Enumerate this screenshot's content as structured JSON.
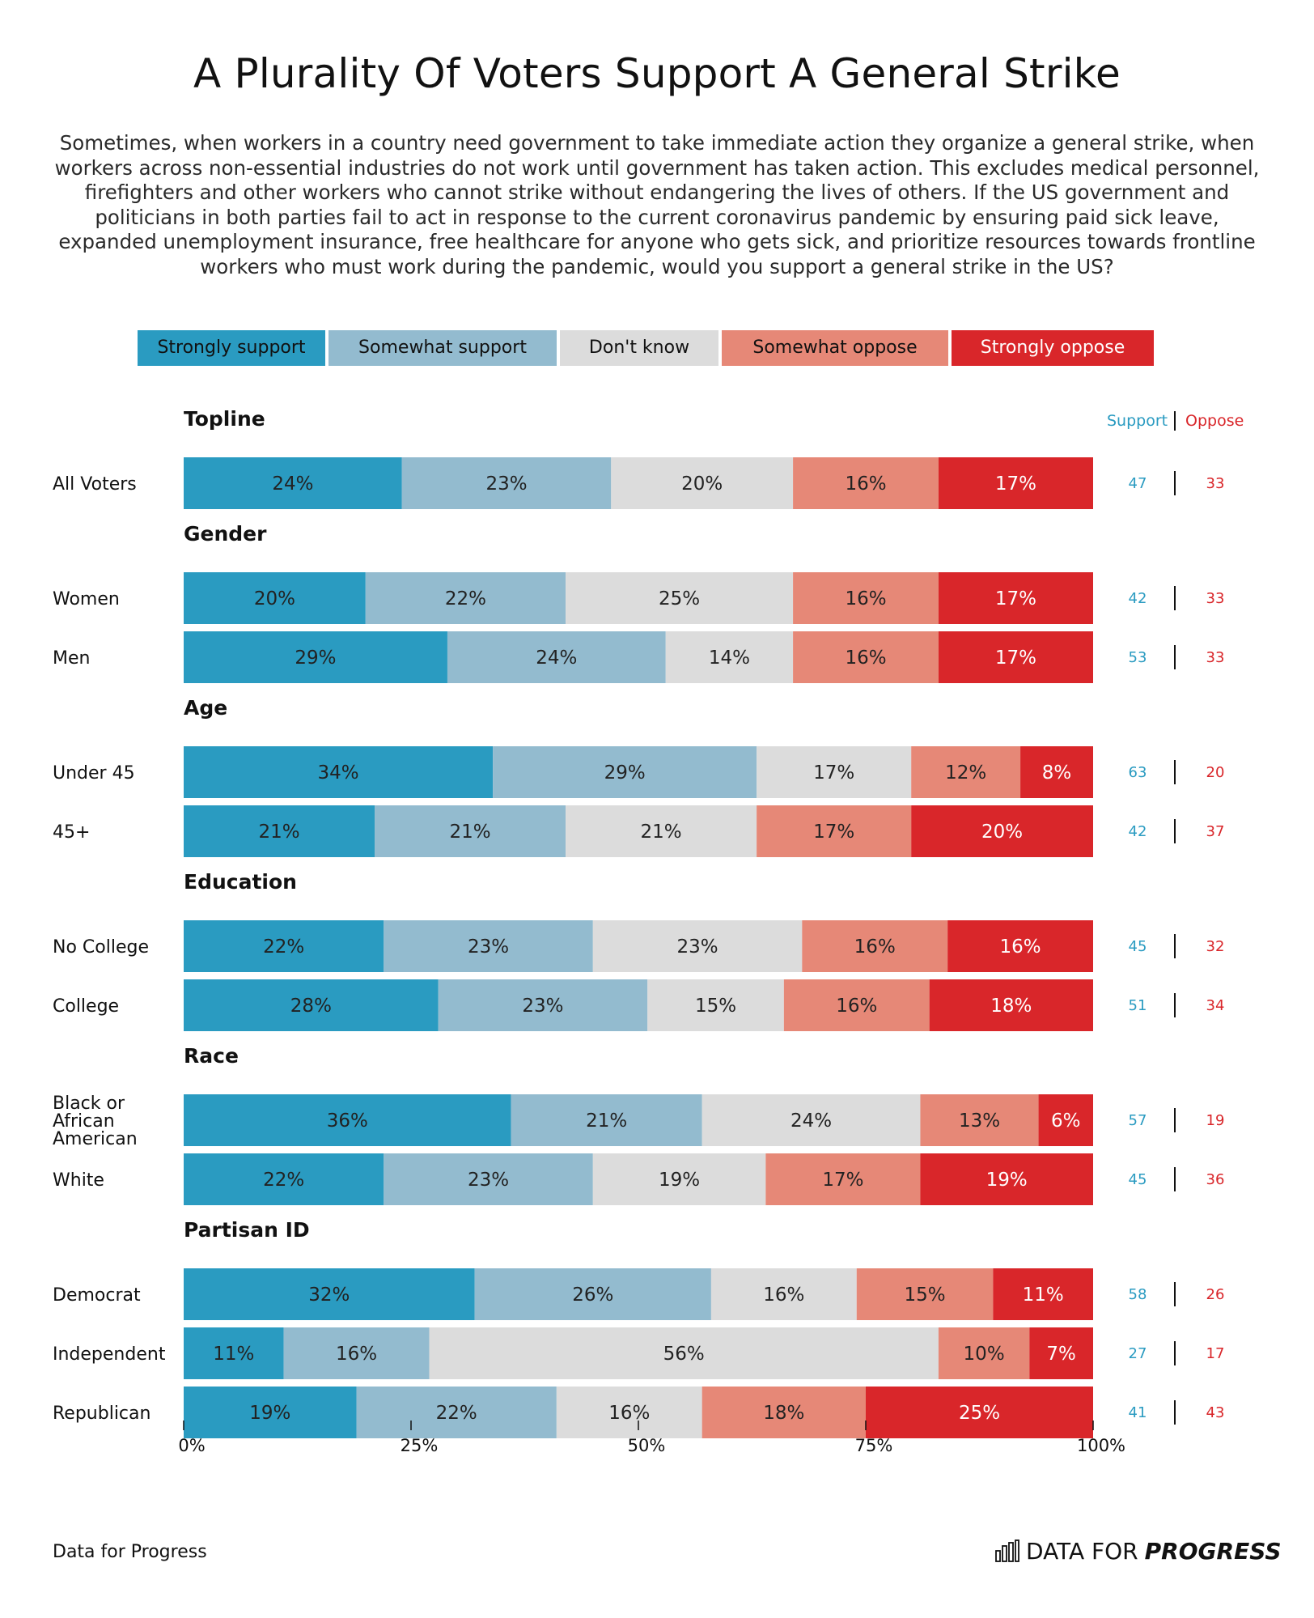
{
  "title": "A Plurality Of Voters Support A General Strike",
  "subtitle": "Sometimes, when workers in a country need government to take immediate action they organize a general strike, when workers across non-essential industries do not work until government has taken action. This excludes medical personnel, firefighters and other workers who cannot strike without endangering the lives of others. If the US government and politicians in both parties fail to act in response to the current coronavirus pandemic by ensuring paid sick leave, expanded unemployment insurance, free healthcare for anyone who gets sick, and prioritize resources towards frontline workers who must work during the pandemic, would you support a general strike in the US?",
  "colors": {
    "strongly_support": "#2a9bc1",
    "somewhat_support": "#93bbcf",
    "dont_know": "#dcdcdc",
    "somewhat_oppose": "#e68877",
    "strongly_oppose": "#d9262a",
    "support_text": "#2a9bc1",
    "oppose_text": "#d9262a"
  },
  "legend": [
    {
      "label": "Strongly support",
      "key": "strongly_support",
      "text_color": "#111111"
    },
    {
      "label": "Somewhat support",
      "key": "somewhat_support",
      "text_color": "#111111"
    },
    {
      "label": "Don't know",
      "key": "dont_know",
      "text_color": "#111111"
    },
    {
      "label": "Somewhat oppose",
      "key": "somewhat_oppose",
      "text_color": "#111111"
    },
    {
      "label": "Strongly oppose",
      "key": "strongly_oppose",
      "text_color": "#ffffff"
    }
  ],
  "support_header": "Support",
  "oppose_header": "Oppose",
  "chart_data": {
    "type": "bar",
    "orientation": "horizontal",
    "stacked": true,
    "xlim": [
      0,
      100
    ],
    "x_ticks": [
      "0%",
      "25%",
      "50%",
      "75%",
      "100%"
    ],
    "x_tick_values": [
      0,
      25,
      50,
      75,
      100
    ],
    "series_names": [
      "Strongly support",
      "Somewhat support",
      "Don't know",
      "Somewhat oppose",
      "Strongly oppose"
    ],
    "groups": [
      {
        "name": "Topline",
        "rows": [
          {
            "label": "All Voters",
            "values": [
              24,
              23,
              20,
              16,
              17
            ],
            "support": 47,
            "oppose": 33
          }
        ]
      },
      {
        "name": "Gender",
        "rows": [
          {
            "label": "Women",
            "values": [
              20,
              22,
              25,
              16,
              17
            ],
            "support": 42,
            "oppose": 33
          },
          {
            "label": "Men",
            "values": [
              29,
              24,
              14,
              16,
              17
            ],
            "support": 53,
            "oppose": 33
          }
        ]
      },
      {
        "name": "Age",
        "rows": [
          {
            "label": "Under 45",
            "values": [
              34,
              29,
              17,
              12,
              8
            ],
            "support": 63,
            "oppose": 20
          },
          {
            "label": "45+",
            "values": [
              21,
              21,
              21,
              17,
              20
            ],
            "support": 42,
            "oppose": 37
          }
        ]
      },
      {
        "name": "Education",
        "rows": [
          {
            "label": "No College",
            "values": [
              22,
              23,
              23,
              16,
              16
            ],
            "support": 45,
            "oppose": 32
          },
          {
            "label": "College",
            "values": [
              28,
              23,
              15,
              16,
              18
            ],
            "support": 51,
            "oppose": 34
          }
        ]
      },
      {
        "name": "Race",
        "rows": [
          {
            "label": "Black or African American",
            "label_lines": [
              "Black or",
              "African",
              "American"
            ],
            "values": [
              36,
              21,
              24,
              13,
              6
            ],
            "support": 57,
            "oppose": 19
          },
          {
            "label": "White",
            "values": [
              22,
              23,
              19,
              17,
              19
            ],
            "support": 45,
            "oppose": 36
          }
        ]
      },
      {
        "name": "Partisan ID",
        "rows": [
          {
            "label": "Democrat",
            "values": [
              32,
              26,
              16,
              15,
              11
            ],
            "support": 58,
            "oppose": 26
          },
          {
            "label": "Independent",
            "values": [
              11,
              16,
              56,
              10,
              7
            ],
            "support": 27,
            "oppose": 17
          },
          {
            "label": "Republican",
            "values": [
              19,
              22,
              16,
              18,
              25
            ],
            "support": 41,
            "oppose": 43
          }
        ]
      }
    ]
  },
  "footer": {
    "source": "Data for Progress",
    "logo_text_plain": "DATA FOR",
    "logo_text_bold": "PROGRESS",
    "logo_icon": "bar-chart-icon"
  }
}
